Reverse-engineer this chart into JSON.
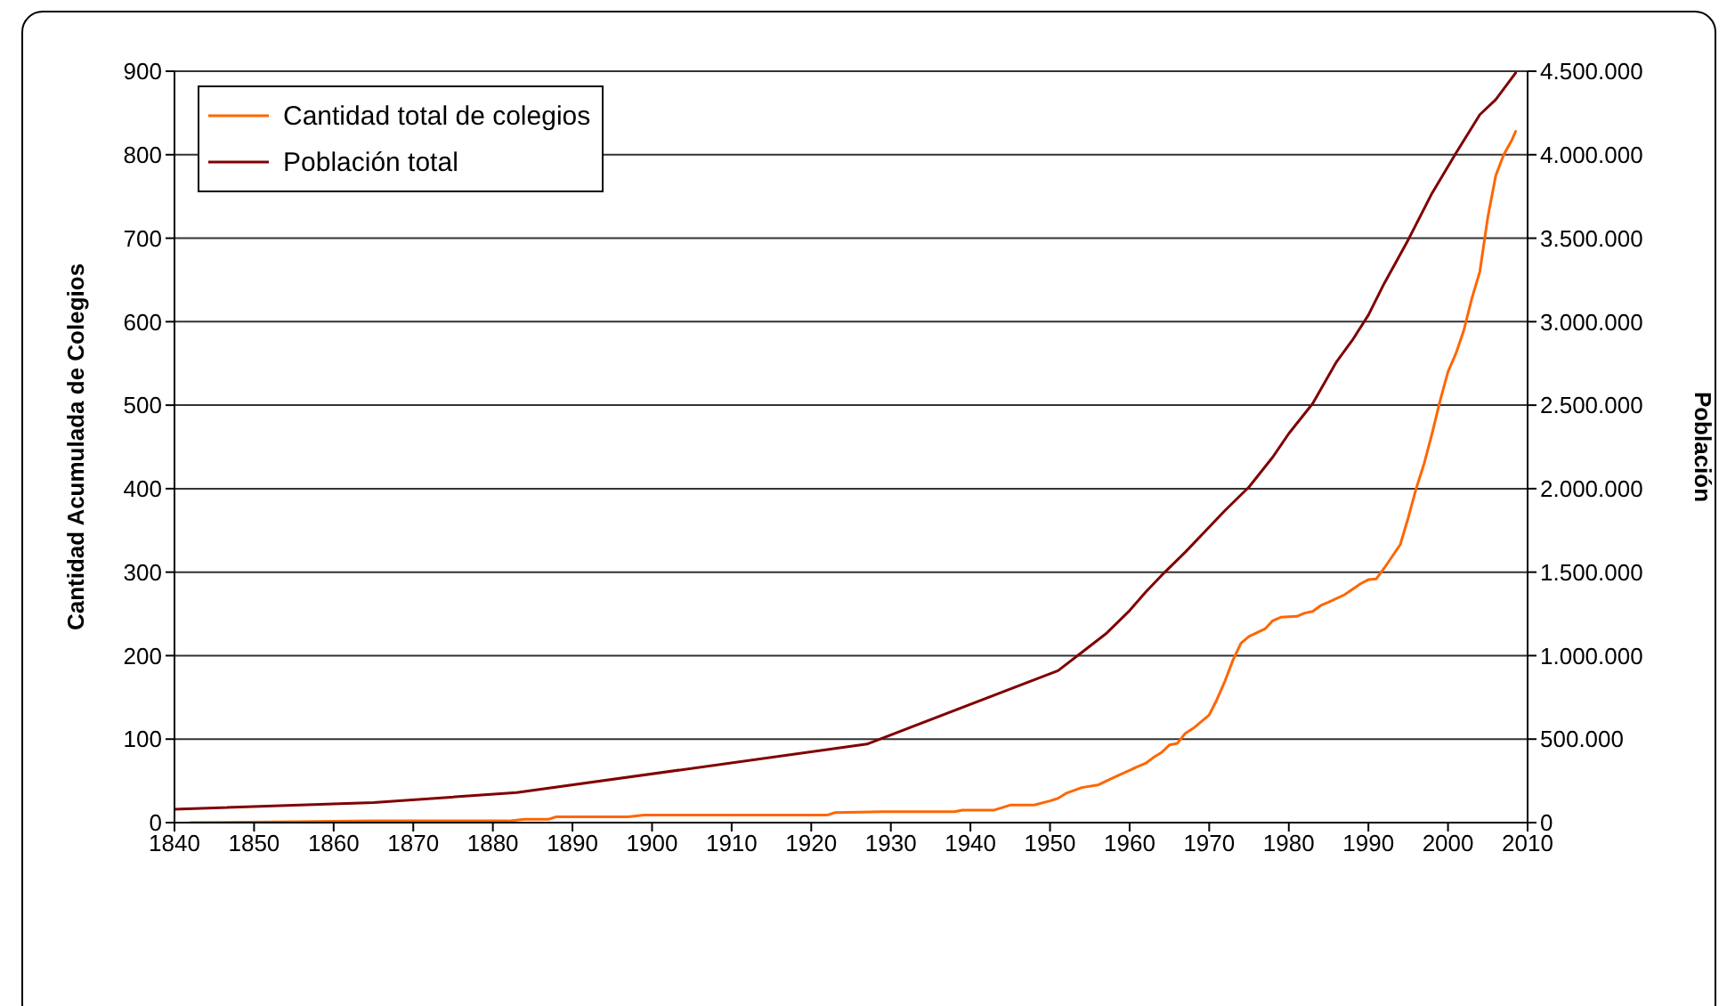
{
  "chart_data": {
    "type": "line",
    "ylabel": "Cantidad Acumulada de Colegios",
    "y2label": "Población",
    "xlim": [
      1840,
      2010
    ],
    "xticks": [
      1840,
      1850,
      1860,
      1870,
      1880,
      1890,
      1900,
      1910,
      1920,
      1930,
      1940,
      1950,
      1960,
      1970,
      1980,
      1990,
      2000,
      2010
    ],
    "ylim": [
      0,
      900
    ],
    "yticks": [
      0,
      100,
      200,
      300,
      400,
      500,
      600,
      700,
      800,
      900
    ],
    "y2lim": [
      0,
      4500000
    ],
    "y2ticks": [
      0,
      {
        "value": 500000,
        "label": "500.000"
      },
      {
        "value": 1000000,
        "label": "1.000.000"
      },
      {
        "value": 1500000,
        "label": "1.500.000"
      },
      {
        "value": 2000000,
        "label": "2.000.000"
      },
      {
        "value": 2500000,
        "label": "2.500.000"
      },
      {
        "value": 3000000,
        "label": "3.000.000"
      },
      {
        "value": 3500000,
        "label": "3.500.000"
      },
      {
        "value": 4000000,
        "label": "4.000.000"
      },
      {
        "value": 4500000,
        "label": "4.500.000"
      }
    ],
    "grid": "y",
    "legend": "top left",
    "series": [
      {
        "name": "Cantidad total de colegios",
        "color": "#ff6600",
        "x": [
          1842,
          1855,
          1865,
          1882,
          1884,
          1887,
          1888,
          1897,
          1899,
          1922,
          1923,
          1929,
          1938,
          1939,
          1943,
          1945,
          1948,
          1950,
          1951,
          1952,
          1954,
          1956,
          1958,
          1961,
          1962,
          1963,
          1964,
          1965,
          1966,
          1967,
          1968,
          1970,
          1971,
          1972,
          1973,
          1974,
          1975,
          1977,
          1978,
          1979,
          1981,
          1982,
          1983,
          1984,
          1985,
          1987,
          1989,
          1990,
          1991,
          1992,
          1994,
          1995,
          1996,
          1997,
          1998,
          1999,
          2000,
          2001,
          2002,
          2003,
          2004,
          2005,
          2006,
          2007,
          2008,
          2008.5
        ],
        "values": [
          0,
          1,
          2,
          2,
          4,
          4,
          7,
          7,
          9,
          9,
          12,
          13,
          13,
          15,
          15,
          21,
          21,
          26,
          29,
          35,
          42,
          45,
          54,
          67,
          71,
          78,
          84,
          93,
          95,
          107,
          113,
          129,
          148,
          170,
          195,
          215,
          223,
          232,
          242,
          246,
          247,
          251,
          253,
          260,
          264,
          273,
          286,
          291,
          292,
          305,
          333,
          365,
          400,
          430,
          466,
          505,
          540,
          562,
          590,
          628,
          660,
          725,
          775,
          800,
          817,
          828
        ]
      },
      {
        "name": "Población total",
        "color": "#800000",
        "axis": "y2",
        "x": [
          1840,
          1865,
          1883,
          1927,
          1951,
          1954,
          1957,
          1960,
          1962,
          1964,
          1967,
          1970,
          1972,
          1975,
          1978,
          1980,
          1983,
          1986,
          1988,
          1990,
          1992,
          1995,
          1998,
          2001,
          2004,
          2006,
          2008.5
        ],
        "values": [
          80000,
          120000,
          180000,
          470000,
          910000,
          1020000,
          1130000,
          1270000,
          1380000,
          1480000,
          1620000,
          1770000,
          1870000,
          2010000,
          2190000,
          2330000,
          2510000,
          2760000,
          2890000,
          3040000,
          3230000,
          3490000,
          3770000,
          4010000,
          4240000,
          4330000,
          4490000
        ]
      }
    ]
  }
}
